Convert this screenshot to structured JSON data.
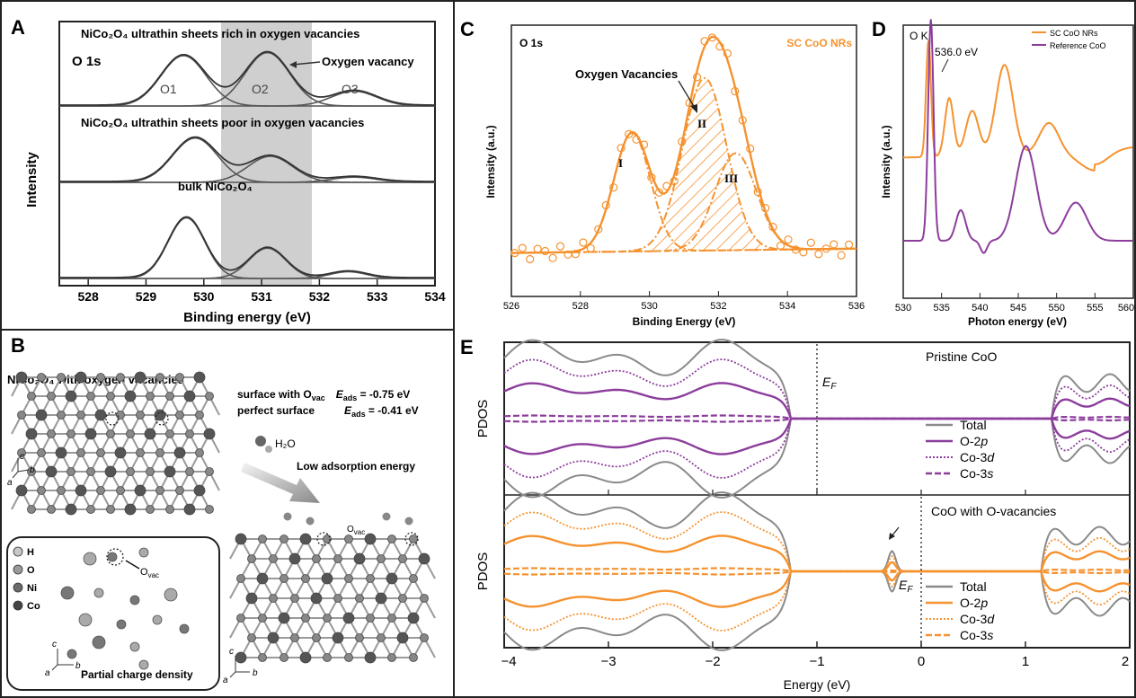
{
  "colors": {
    "gray_curve": "#555555",
    "gray_band": "#cfcfcf",
    "orange": "#f5922f",
    "purple": "#8c3d9c",
    "pdos_gray": "#8a8a8a",
    "border": "#222222"
  },
  "panels": {
    "A": "A",
    "B": "B",
    "C": "C",
    "D": "D",
    "E": "E"
  },
  "panel_a": {
    "title1": "NiCo₂O₄ ultrathin sheets rich in oxygen vacancies",
    "core_level": "O 1s",
    "vacancy_label": "Oxygen vacancy",
    "peaks": [
      "O1",
      "O2",
      "O3"
    ],
    "title2": "NiCo₂O₄ ultrathin sheets poor in oxygen vacancies",
    "title3": "bulk NiCo₂O₄",
    "ylabel": "Intensity",
    "xlabel": "Binding energy (eV)"
  },
  "panel_b": {
    "title": "NiCo₂O₄ with oxygen vacancies",
    "e1_label": "surface with O",
    "e1_sub": "vac",
    "e1_value": "E",
    "e1_sub2": "ads",
    "e1_num": " = -0.75 eV",
    "e2_label": "perfect surface",
    "e2_value": "E",
    "e2_sub": "ads",
    "e2_num": " = -0.41 eV",
    "water": "H₂O",
    "adsorption": "Low adsorption energy",
    "legend": [
      "H",
      "O",
      "Ni",
      "Co"
    ],
    "ovac": "O",
    "ovac_sub": "vac",
    "inset_caption": "Partial charge density",
    "axes": [
      "c",
      "b",
      "a"
    ]
  },
  "panel_c": {
    "core_level": "O 1s",
    "legend": "SC CoO NRs",
    "annotation": "Oxygen Vacancies",
    "components": [
      "I",
      "II",
      "III"
    ],
    "ylabel": "Intensity (a.u.)",
    "xlabel": "Binding Energy (eV)"
  },
  "panel_d": {
    "edge": "O K",
    "annotation": "536.0 eV",
    "ylabel": "Intensity (a.u.)",
    "xlabel": "Photon energy (eV)"
  },
  "panel_e": {
    "ylabel_top": "PDOS",
    "ylabel_bottom": "PDOS",
    "fermi_label": "E",
    "fermi_sub": "F",
    "title_top": "Pristine CoO",
    "title_bottom": "CoO with O-vacancies",
    "xlabel": "Energy (eV)",
    "legend": [
      "Total",
      "O-2p",
      "Co-3d",
      "Co-3s"
    ]
  },
  "chart_data": [
    {
      "panel": "A",
      "type": "line",
      "xlabel": "Binding energy (eV)",
      "ylabel": "Intensity",
      "xlim": [
        527.5,
        534
      ],
      "x_ticks": [
        528,
        529,
        530,
        531,
        532,
        533,
        534
      ],
      "shaded_region": [
        530.45,
        532.05
      ],
      "stacked_spectra": [
        {
          "label": "NiCo₂O₄ ultrathin sheets rich in oxygen vacancies",
          "peaks": [
            {
              "name": "O1",
              "center": 529.65,
              "height": 0.85
            },
            {
              "name": "O2",
              "center": 531.1,
              "height": 0.9
            },
            {
              "name": "O3",
              "center": 532.6,
              "height": 0.25
            }
          ]
        },
        {
          "label": "NiCo₂O₄ ultrathin sheets poor in oxygen vacancies",
          "peaks": [
            {
              "center": 529.85,
              "height": 0.85
            },
            {
              "center": 531.15,
              "height": 0.5
            },
            {
              "center": 532.6,
              "height": 0.1
            }
          ]
        },
        {
          "label": "bulk NiCo₂O₄",
          "peaks": [
            {
              "center": 529.7,
              "height": 0.9
            },
            {
              "center": 531.1,
              "height": 0.45
            },
            {
              "center": 532.5,
              "height": 0.1
            }
          ]
        }
      ]
    },
    {
      "panel": "C",
      "type": "line",
      "xlabel": "Binding Energy (eV)",
      "ylabel": "Intensity (a.u.)",
      "xlim": [
        526,
        536
      ],
      "x_ticks": [
        526,
        528,
        530,
        532,
        534,
        536
      ],
      "series": [
        {
          "name": "SC CoO NRs"
        }
      ],
      "components": [
        {
          "name": "I",
          "center": 529.5,
          "height": 0.55
        },
        {
          "name": "II",
          "center": 531.6,
          "height": 0.8
        },
        {
          "name": "III",
          "center": 532.5,
          "height": 0.45
        }
      ]
    },
    {
      "panel": "D",
      "type": "line",
      "xlabel": "Photon energy (eV)",
      "ylabel": "Intensity (a.u.)",
      "xlim": [
        530,
        560
      ],
      "x_ticks": [
        530,
        535,
        540,
        545,
        550,
        555,
        560
      ],
      "series": [
        {
          "name": "SC CoO NRs"
        },
        {
          "name": "Reference CoO"
        }
      ],
      "annotations": [
        {
          "x": 536.0,
          "text": "536.0 eV"
        }
      ]
    },
    {
      "panel": "E",
      "type": "line",
      "xlabel": "Energy (eV)",
      "xlim": [
        -4,
        2
      ],
      "x_ticks": [
        -4,
        -3,
        -2,
        -1,
        0,
        1,
        2
      ],
      "subplots": [
        {
          "title": "Pristine CoO",
          "fermi_level": -1.0,
          "series": [
            "Total",
            "O-2p",
            "Co-3d",
            "Co-3s"
          ]
        },
        {
          "title": "CoO with O-vacancies",
          "fermi_level": 0.0,
          "series": [
            "Total",
            "O-2p",
            "Co-3d",
            "Co-3s"
          ]
        }
      ]
    }
  ]
}
